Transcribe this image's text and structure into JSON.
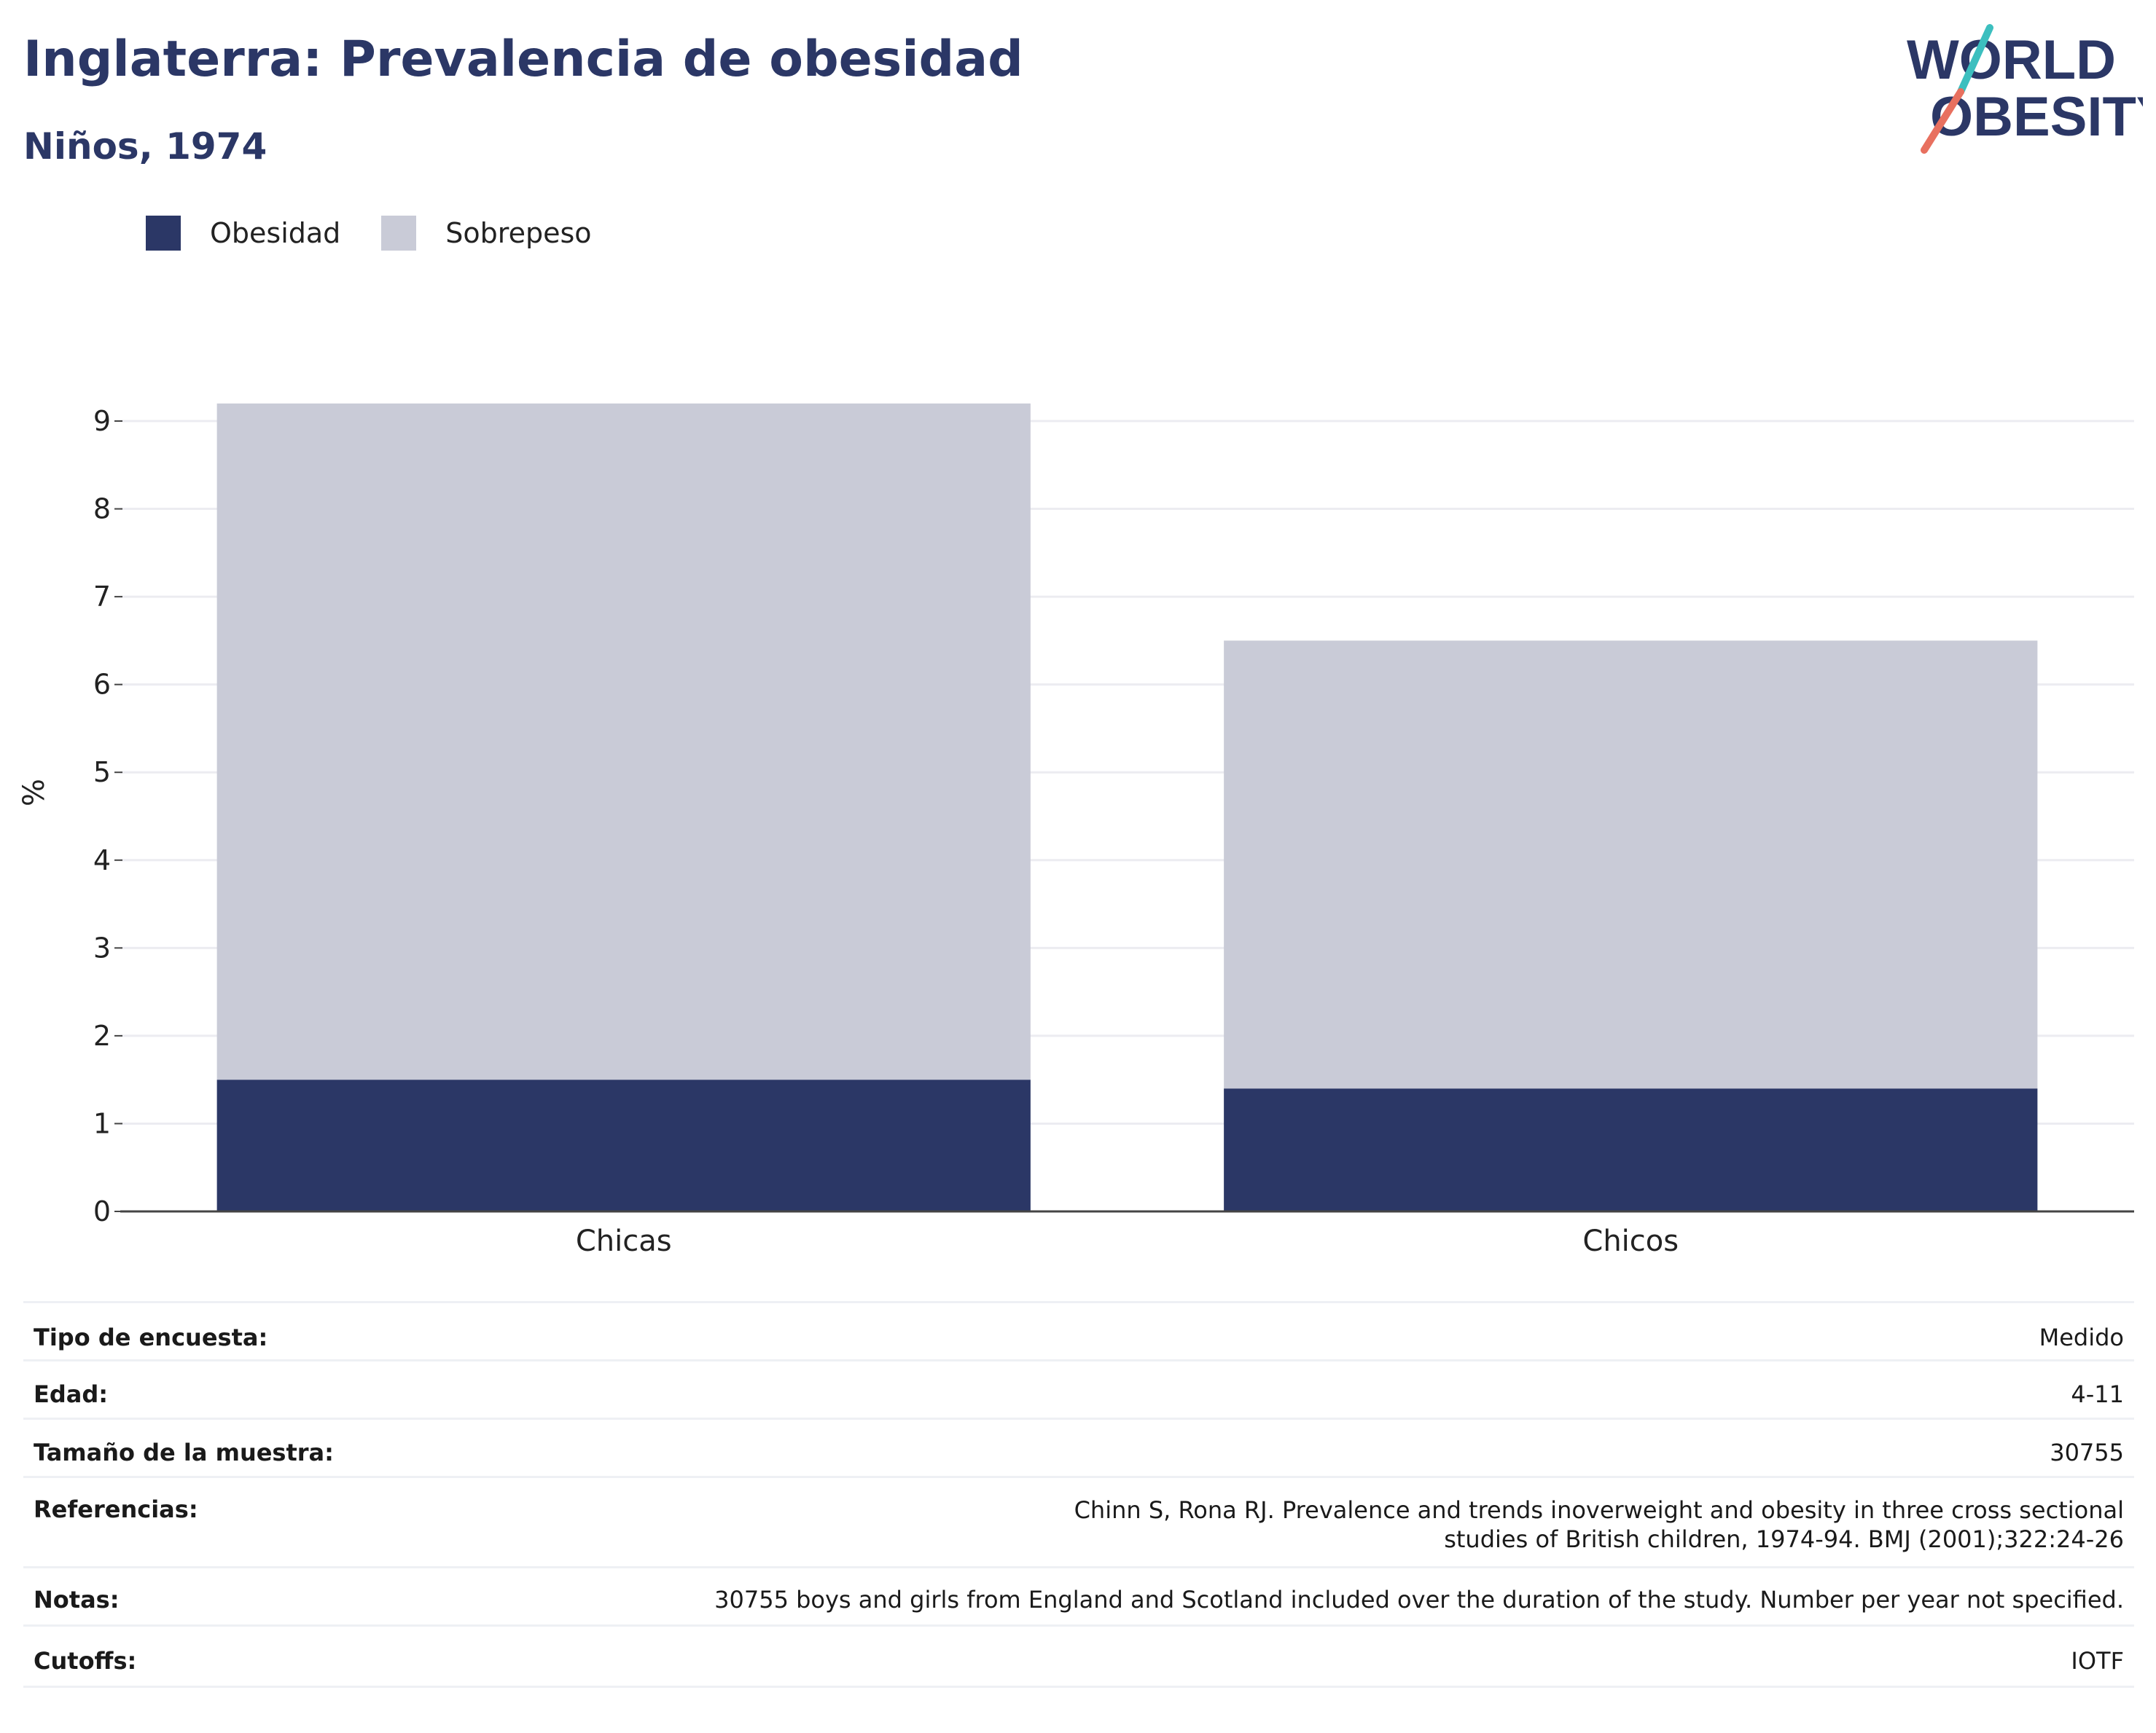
{
  "header": {
    "title": "Inglaterra: Prevalencia de obesidad",
    "subtitle": "Niños, 1974"
  },
  "logo": {
    "line1": "WORLD",
    "line2": "OBESITY",
    "colors": {
      "text": "#2b3766",
      "slash_top": "#3cbfbf",
      "slash_bottom": "#e8705f"
    }
  },
  "legend": [
    {
      "label": "Obesidad",
      "color": "#2b3766"
    },
    {
      "label": "Sobrepeso",
      "color": "#c9cbd7"
    }
  ],
  "chart_data": {
    "type": "bar",
    "stacked": true,
    "categories": [
      "Chicas",
      "Chicos"
    ],
    "series": [
      {
        "name": "Obesidad",
        "color": "#2b3766",
        "values": [
          1.5,
          1.4
        ]
      },
      {
        "name": "Sobrepeso",
        "color": "#c9cbd7",
        "values": [
          7.7,
          5.1
        ]
      }
    ],
    "ylabel": "%",
    "ylim": [
      0,
      9.2
    ],
    "yticks": [
      0,
      1,
      2,
      3,
      4,
      5,
      6,
      7,
      8,
      9
    ],
    "grid": true,
    "legend_position": "top-left"
  },
  "info": [
    {
      "key": "Tipo de encuesta:",
      "value": "Medido"
    },
    {
      "key": "Edad:",
      "value": "4-11"
    },
    {
      "key": "Tamaño de la muestra:",
      "value": "30755"
    },
    {
      "key": "Referencias:",
      "value": "Chinn S, Rona RJ. Prevalence and trends inoverweight and obesity in three cross sectional studies of British children, 1974-94. BMJ (2001);322:24-26"
    },
    {
      "key": "Notas:",
      "value": "30755 boys and girls from England and Scotland included over the duration of the study. Number per year not specified."
    },
    {
      "key": "Cutoffs:",
      "value": "IOTF"
    }
  ]
}
